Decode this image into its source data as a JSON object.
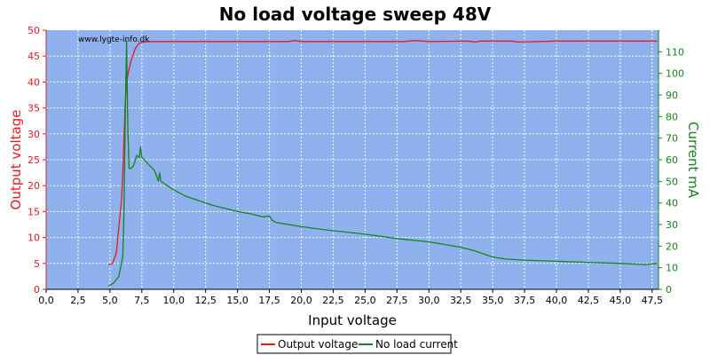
{
  "chart_data": {
    "type": "line",
    "title": "No load voltage sweep 48V",
    "xlabel": "Input voltage",
    "ylabel_left": "Output voltage",
    "ylabel_right": "Current mA",
    "watermark": "www.lygte-info.dk",
    "xlim": [
      0,
      48
    ],
    "ylim_left": [
      0,
      50
    ],
    "ylim_right": [
      0,
      120
    ],
    "x_ticks": [
      "0,0",
      "2,5",
      "5,0",
      "7,5",
      "10,0",
      "12,5",
      "15,0",
      "17,5",
      "20,0",
      "22,5",
      "25,0",
      "27,5",
      "30,0",
      "32,5",
      "35,0",
      "37,5",
      "40,0",
      "42,5",
      "45,0",
      "47,5"
    ],
    "y_left_ticks": [
      "0",
      "5",
      "10",
      "15",
      "20",
      "25",
      "30",
      "35",
      "40",
      "45",
      "50"
    ],
    "y_right_ticks": [
      "0",
      "10",
      "20",
      "30",
      "40",
      "50",
      "60",
      "70",
      "80",
      "90",
      "100",
      "110"
    ],
    "grid": true,
    "plot_background": "#8fb2ee",
    "legend_position": "bottom-center",
    "series": [
      {
        "name": "Output voltage",
        "axis": "left",
        "color": "#e8191e",
        "x": [
          4.9,
          5.2,
          5.5,
          5.7,
          5.9,
          6.0,
          6.1,
          6.2,
          6.3,
          6.5,
          6.7,
          7.0,
          7.3,
          7.6,
          8.0,
          10.0,
          15.0,
          19.0,
          19.5,
          20.0,
          25.0,
          28.0,
          29.0,
          30.0,
          33.0,
          33.7,
          34.0,
          36.5,
          37.0,
          40.0,
          45.0,
          47.9
        ],
        "y": [
          4.7,
          5.0,
          7.0,
          12.0,
          17.0,
          22.0,
          29.0,
          36.0,
          40.0,
          42.5,
          44.5,
          46.5,
          47.5,
          47.7,
          47.8,
          47.8,
          47.8,
          47.8,
          48.0,
          47.8,
          47.8,
          47.8,
          48.0,
          47.8,
          47.9,
          47.7,
          47.9,
          47.9,
          47.7,
          47.9,
          47.9,
          47.9
        ]
      },
      {
        "name": "No load current",
        "axis": "right",
        "color": "#15831c",
        "x": [
          4.9,
          5.3,
          5.7,
          6.0,
          6.1,
          6.2,
          6.3,
          6.4,
          6.5,
          6.7,
          6.9,
          7.1,
          7.3,
          7.4,
          7.5,
          7.7,
          8.0,
          8.5,
          8.8,
          8.9,
          9.0,
          10.0,
          11.0,
          12.0,
          13.0,
          14.0,
          15.0,
          16.0,
          17.0,
          17.5,
          17.7,
          18.0,
          20.0,
          22.0,
          25.0,
          27.5,
          30.0,
          31.0,
          32.5,
          33.5,
          34.5,
          35.0,
          36.0,
          37.5,
          40.0,
          42.5,
          45.0,
          47.0,
          47.9
        ],
        "y": [
          1.5,
          3.0,
          6.0,
          15.0,
          35.0,
          80.0,
          115.0,
          75.0,
          56.0,
          56.0,
          58.0,
          62.0,
          61.0,
          66.0,
          61.0,
          60.0,
          58.0,
          55.0,
          50.0,
          54.0,
          50.0,
          46.0,
          43.0,
          41.0,
          39.0,
          37.5,
          36.0,
          35.0,
          33.5,
          34.0,
          32.0,
          31.0,
          29.0,
          27.5,
          25.5,
          23.5,
          22.0,
          21.0,
          19.5,
          18.0,
          16.0,
          15.0,
          14.0,
          13.5,
          13.0,
          12.5,
          12.0,
          11.5,
          12.0
        ]
      }
    ]
  }
}
